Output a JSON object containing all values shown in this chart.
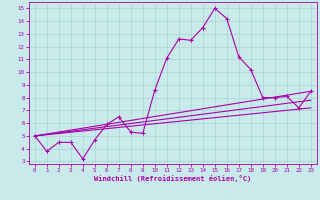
{
  "background_color": "#c8eaea",
  "grid_color": "#aad4d4",
  "line_color": "#aa00aa",
  "xlabel": "Windchill (Refroidissement éolien,°C)",
  "xlim": [
    -0.5,
    23.5
  ],
  "ylim": [
    2.8,
    15.5
  ],
  "yticks": [
    3,
    4,
    5,
    6,
    7,
    8,
    9,
    10,
    11,
    12,
    13,
    14,
    15
  ],
  "xticks": [
    0,
    1,
    2,
    3,
    4,
    5,
    6,
    7,
    8,
    9,
    10,
    11,
    12,
    13,
    14,
    15,
    16,
    17,
    18,
    19,
    20,
    21,
    22,
    23
  ],
  "main_series_x": [
    0,
    1,
    2,
    3,
    4,
    5,
    6,
    7,
    8,
    9,
    10,
    11,
    12,
    13,
    14,
    15,
    16,
    17,
    18,
    19,
    20,
    21,
    22,
    23
  ],
  "main_series_y": [
    5.0,
    3.8,
    4.5,
    4.5,
    3.2,
    4.7,
    5.9,
    6.5,
    5.3,
    5.2,
    8.6,
    11.1,
    12.6,
    12.5,
    13.5,
    15.0,
    14.2,
    11.2,
    10.2,
    8.0,
    8.0,
    8.1,
    7.2,
    8.5
  ],
  "straight_lines": [
    [
      [
        0,
        23
      ],
      [
        5.0,
        8.5
      ]
    ],
    [
      [
        0,
        23
      ],
      [
        5.0,
        7.8
      ]
    ],
    [
      [
        0,
        23
      ],
      [
        5.0,
        7.2
      ]
    ]
  ],
  "line_width": 0.8,
  "marker_size": 3
}
